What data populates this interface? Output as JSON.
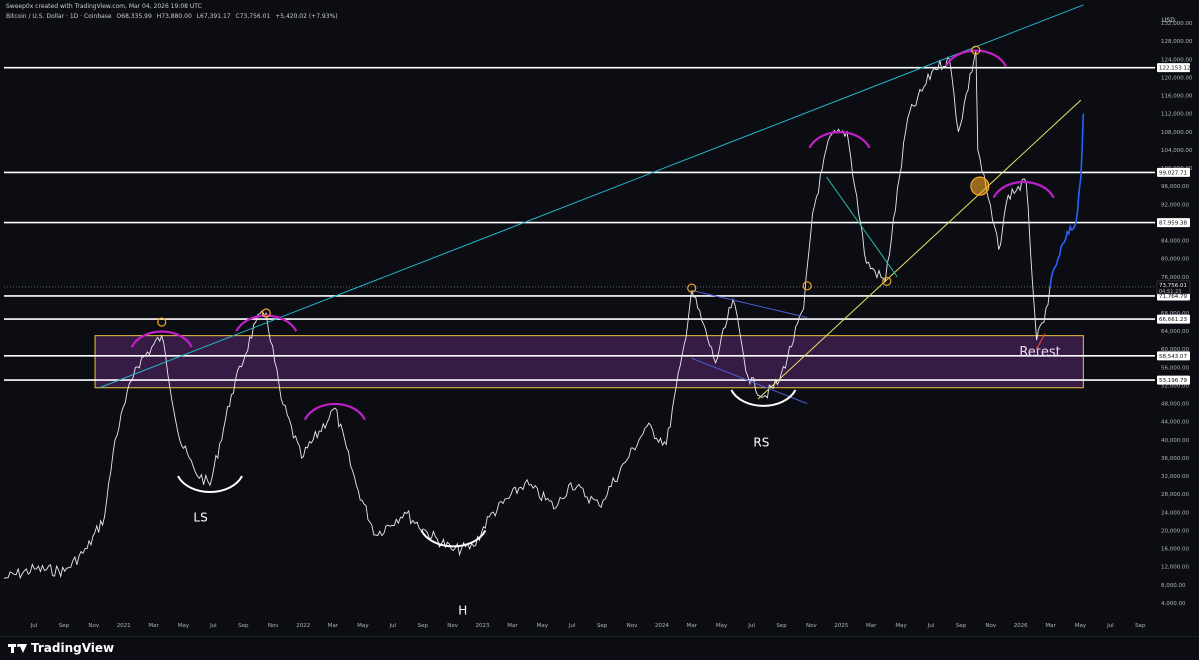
{
  "header": {
    "created_by": "Sweep0x created with TradingView.com, Mar 04, 2026 19:08 UTC",
    "symbol": "Bitcoin / U.S. Dollar · 1D · Coinbase",
    "open": "O68,335.99",
    "high": "H73,880.00",
    "low": "L67,391.17",
    "close": "C73,756.01",
    "change": "+5,420.02 (+7.93%)"
  },
  "currency": "USD",
  "footer": {
    "brand": "TradingView"
  },
  "colors": {
    "background": "#0b0d12",
    "hline": "#ffffff",
    "zone_fill": "#5b2a6e",
    "zone_border": "#f0c43a",
    "cyan_trend": "#26b4c9",
    "yellow_trend": "#e9e062",
    "arc_magenta": "#c020c8",
    "projection": "#2a62ff",
    "marker": "#f5a623"
  },
  "chart_data": {
    "type": "line",
    "title": "",
    "xlabel": "",
    "ylabel": "",
    "x_ticks": [
      "Jul",
      "Sep",
      "Nov",
      "2021",
      "Mar",
      "May",
      "Jul",
      "Sep",
      "Nov",
      "2022",
      "Mar",
      "May",
      "Jul",
      "Sep",
      "Nov",
      "2023",
      "Mar",
      "May",
      "Jul",
      "Sep",
      "Nov",
      "2024",
      "Mar",
      "May",
      "Jul",
      "Sep",
      "Nov",
      "2025",
      "Mar",
      "May",
      "Jul",
      "Sep",
      "Nov",
      "2026",
      "Mar",
      "May",
      "Jul",
      "Sep"
    ],
    "y_ticks": [
      4000,
      8000,
      12000,
      16000,
      20000,
      24000,
      28000,
      32000,
      36000,
      40000,
      44000,
      48000,
      52000,
      56000,
      60000,
      64000,
      68000,
      72000,
      76000,
      80000,
      84000,
      88000,
      92000,
      96000,
      100000,
      104000,
      108000,
      112000,
      116000,
      120000,
      124000,
      128000,
      132000
    ],
    "y_tick_labels": [
      "4,000.00",
      "8,000.00",
      "12,000.00",
      "16,000.00",
      "20,000.00",
      "24,000.00",
      "28,000.00",
      "32,000.00",
      "36,000.00",
      "40,000.00",
      "44,000.00",
      "48,000.00",
      "52,000.00",
      "56,000.00",
      "60,000.00",
      "64,000.00",
      "68,000.00",
      "72,000.00",
      "76,000.00",
      "80,000.00",
      "84,000.00",
      "88,000.00",
      "92,000.00",
      "96,000.00",
      "100,000.00",
      "104,000.00",
      "108,000.00",
      "112,000.00",
      "116,000.00",
      "120,000.00",
      "124,000.00",
      "128,000.00",
      "132,000.00"
    ],
    "ylim": [
      2000,
      136000
    ],
    "xlim": [
      "2020-06-01",
      "2026-10-01"
    ],
    "price_series": [
      [
        "2020-06-01",
        9400
      ],
      [
        "2020-08-01",
        11500
      ],
      [
        "2020-10-01",
        11000
      ],
      [
        "2020-11-15",
        16000
      ],
      [
        "2020-12-20",
        23000
      ],
      [
        "2021-01-10",
        40000
      ],
      [
        "2021-02-20",
        56000
      ],
      [
        "2021-04-14",
        63000
      ],
      [
        "2021-05-20",
        40000
      ],
      [
        "2021-06-20",
        33000
      ],
      [
        "2021-07-20",
        30000
      ],
      [
        "2021-09-01",
        50000
      ],
      [
        "2021-10-20",
        66000
      ],
      [
        "2021-11-10",
        68000
      ],
      [
        "2021-12-10",
        49000
      ],
      [
        "2022-01-20",
        36000
      ],
      [
        "2022-03-28",
        47000
      ],
      [
        "2022-05-10",
        30000
      ],
      [
        "2022-06-18",
        19000
      ],
      [
        "2022-08-15",
        24000
      ],
      [
        "2022-09-30",
        19500
      ],
      [
        "2022-11-21",
        15600
      ],
      [
        "2023-01-01",
        16500
      ],
      [
        "2023-02-01",
        23000
      ],
      [
        "2023-04-14",
        30500
      ],
      [
        "2023-06-15",
        25000
      ],
      [
        "2023-07-15",
        30500
      ],
      [
        "2023-09-10",
        25500
      ],
      [
        "2023-11-01",
        35000
      ],
      [
        "2023-12-15",
        43000
      ],
      [
        "2024-01-23",
        39000
      ],
      [
        "2024-02-28",
        61000
      ],
      [
        "2024-03-14",
        73000
      ],
      [
        "2024-05-01",
        57000
      ],
      [
        "2024-06-05",
        71000
      ],
      [
        "2024-07-05",
        54000
      ],
      [
        "2024-08-05",
        49500
      ],
      [
        "2024-09-06",
        53000
      ],
      [
        "2024-10-25",
        69000
      ],
      [
        "2024-11-12",
        90000
      ],
      [
        "2024-12-17",
        107000
      ],
      [
        "2025-01-20",
        108000
      ],
      [
        "2025-02-28",
        79000
      ],
      [
        "2025-04-07",
        75000
      ],
      [
        "2025-05-22",
        111000
      ],
      [
        "2025-07-14",
        122000
      ],
      [
        "2025-08-14",
        124000
      ],
      [
        "2025-09-01",
        108000
      ],
      [
        "2025-10-06",
        126000
      ],
      [
        "2025-10-10",
        104000
      ],
      [
        "2025-11-21",
        82000
      ],
      [
        "2025-12-10",
        94000
      ],
      [
        "2026-01-15",
        97000
      ],
      [
        "2026-02-05",
        62000
      ],
      [
        "2026-02-20",
        66000
      ],
      [
        "2026-03-04",
        73756
      ]
    ],
    "projection_series": [
      [
        "2026-03-04",
        73756
      ],
      [
        "2026-03-20",
        80000
      ],
      [
        "2026-04-05",
        84500
      ],
      [
        "2026-04-25",
        88000
      ],
      [
        "2026-05-05",
        98000
      ],
      [
        "2026-05-10",
        112000
      ]
    ],
    "horizontal_levels": [
      {
        "label": "122,153.12",
        "value": 122153.12
      },
      {
        "label": "99,027.71",
        "value": 99027.71
      },
      {
        "label": "87,959.38",
        "value": 87959.38
      },
      {
        "label": "71,764.79",
        "value": 71764.79
      },
      {
        "label": "66,661.23",
        "value": 66661.23
      },
      {
        "label": "58,543.07",
        "value": 58543.07
      },
      {
        "label": "53,196.79",
        "value": 53196.79
      }
    ],
    "last_price": {
      "label": "73,756.01",
      "countdown": "04:51:23",
      "value": 73756.01
    },
    "support_zone": {
      "from_date": "2020-12-01",
      "to_date": "2026-05-10",
      "low": 51500,
      "high": 63000
    },
    "trendlines": [
      {
        "name": "cyan",
        "from": [
          "2020-12-10",
          51500
        ],
        "to": [
          "2026-05-10",
          136000
        ]
      },
      {
        "name": "yellow",
        "from": [
          "2024-07-25",
          49000
        ],
        "to": [
          "2026-05-05",
          115000
        ]
      },
      {
        "name": "wedge-top",
        "from": [
          "2024-03-14",
          73000
        ],
        "to": [
          "2024-11-01",
          67000
        ]
      },
      {
        "name": "wedge-bottom",
        "from": [
          "2024-03-14",
          58000
        ],
        "to": [
          "2024-11-01",
          48000
        ]
      },
      {
        "name": "channel",
        "from": [
          "2024-12-10",
          98000
        ],
        "to": [
          "2025-05-01",
          76000
        ]
      }
    ],
    "annotations": [
      {
        "text": "LS",
        "date": "2021-07-01",
        "value": 22000
      },
      {
        "text": "H",
        "date": "2022-12-10",
        "value": 1500
      },
      {
        "text": "RS",
        "date": "2024-08-01",
        "value": 38500
      },
      {
        "text": "Retest",
        "date": "2026-02-12",
        "value": 58500
      }
    ],
    "markers": [
      [
        "2021-04-14",
        66000
      ],
      [
        "2021-11-10",
        68000
      ],
      [
        "2024-03-14",
        73500
      ],
      [
        "2024-11-01",
        74000
      ],
      [
        "2025-04-10",
        75000
      ],
      [
        "2025-10-06",
        126000
      ],
      [
        "2025-10-14",
        96000
      ]
    ],
    "arcs_top": [
      [
        "2021-04-14",
        64000
      ],
      [
        "2021-11-10",
        67500
      ],
      [
        "2022-03-28",
        48000
      ],
      [
        "2025-01-05",
        108000
      ],
      [
        "2025-10-06",
        126000
      ],
      [
        "2026-01-10",
        97000
      ]
    ],
    "arcs_bottom": [
      [
        "2021-07-20",
        32000
      ],
      [
        "2022-11-21",
        20000
      ],
      [
        "2024-08-05",
        51000
      ]
    ]
  }
}
